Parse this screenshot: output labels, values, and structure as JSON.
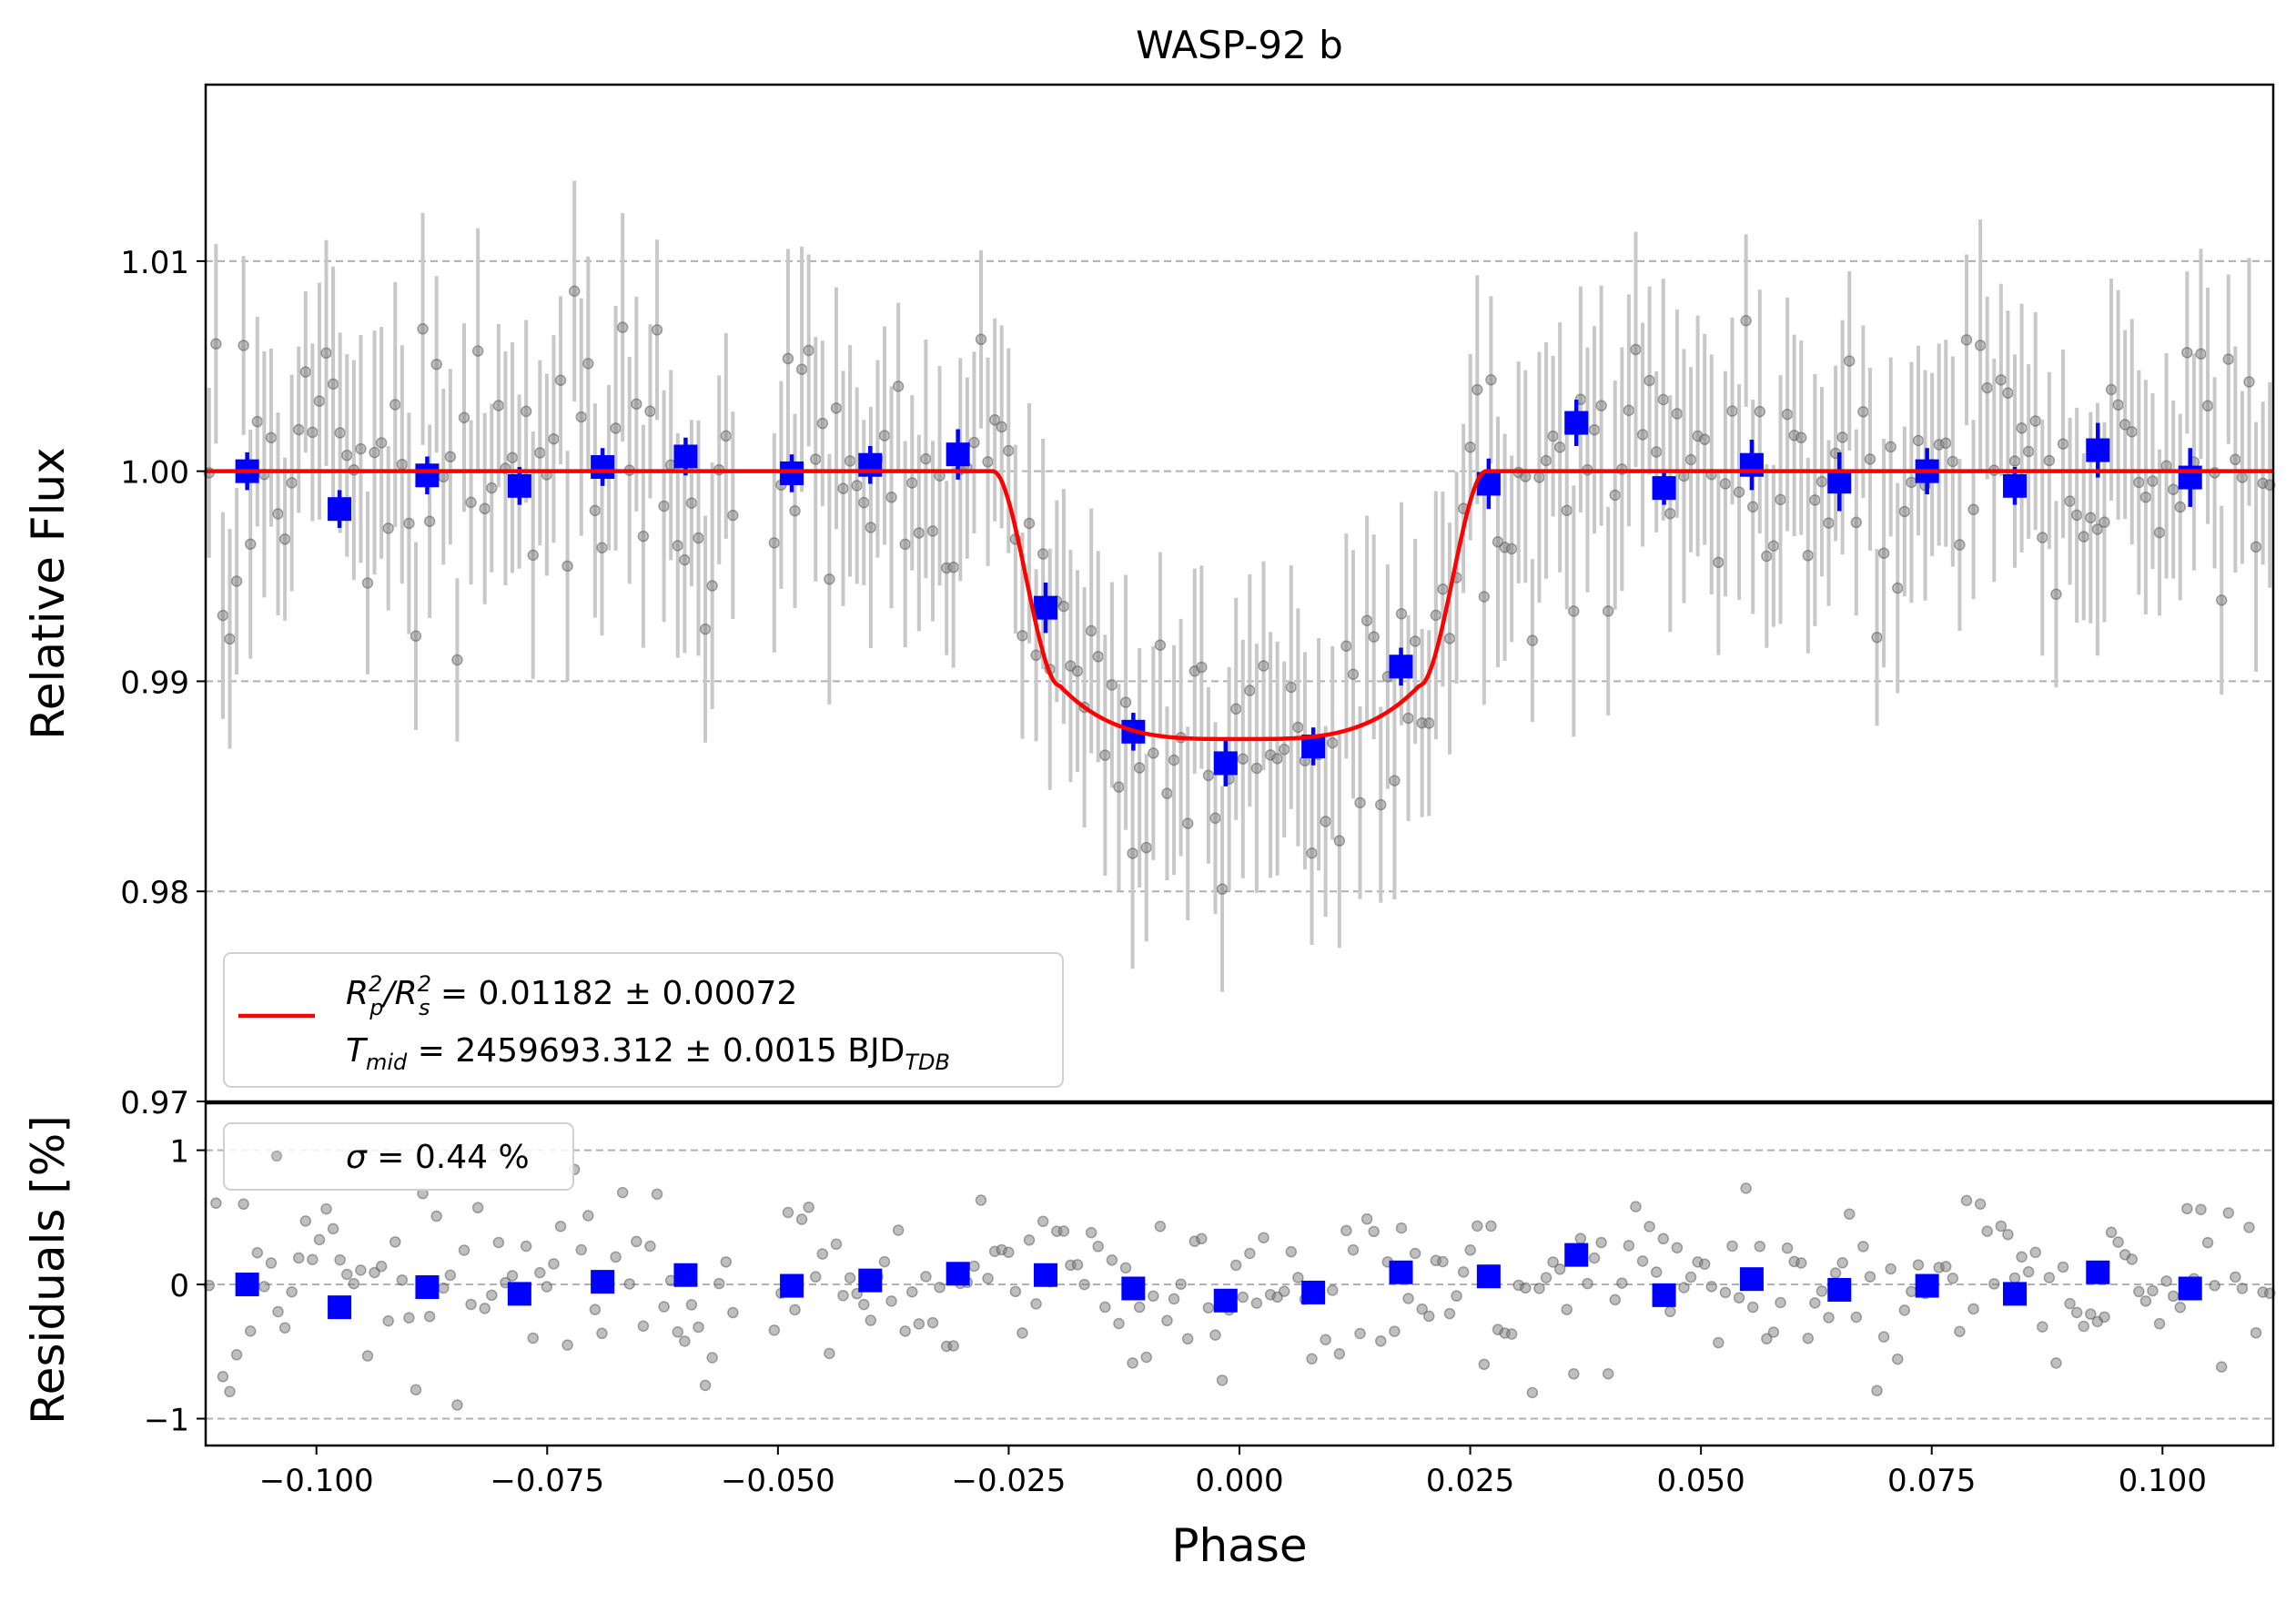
{
  "chart_data": [
    {
      "type": "scatter",
      "panel": "main",
      "title": "WASP-92 b",
      "xlabel": "Phase",
      "ylabel": "Relative Flux",
      "xlim": [
        -0.112,
        0.112
      ],
      "ylim": [
        0.97,
        1.0184
      ],
      "yticks": [
        0.97,
        0.98,
        0.99,
        1.0,
        1.01
      ],
      "ytick_labels": [
        "0.97",
        "0.98",
        "0.99",
        "1.00",
        "1.01"
      ],
      "grid": "horizontal-dashed",
      "legend_position": "bottom-left",
      "legend": {
        "line1_main": "R",
        "line1_sub1": "p",
        "line1_sup1": "2",
        "line1_slash": "/R",
        "line1_sub2": "s",
        "line1_sup2": "2",
        "line1_rest": " = 0.01182 ± 0.00072",
        "line2_main": "T",
        "line2_sub": "mid",
        "line2_rest": " = 2459693.312 ± 0.0015 BJD",
        "line2_unit_sub": "TDB"
      },
      "colors": {
        "model": "#ff0000",
        "binned": "#0000ff",
        "raw": "#808080",
        "errorbar": "#c8c8c8"
      },
      "series": [
        {
          "name": "model",
          "kind": "line",
          "transit_model": {
            "depth": 0.01182,
            "t_ingress_start": 0.0267,
            "t_ingress_end": 0.0195,
            "bottom": 0.98725,
            "edge": 0.9898
          }
        },
        {
          "name": "binned",
          "kind": "errorbar-square",
          "x": [
            -0.1075,
            -0.0975,
            -0.088,
            -0.078,
            -0.069,
            -0.06,
            -0.0485,
            -0.04,
            -0.0305,
            -0.021,
            -0.0115,
            -0.0015,
            0.008,
            0.0175,
            0.027,
            0.0365,
            0.046,
            0.0555,
            0.065,
            0.0745,
            0.084,
            0.093,
            0.103
          ],
          "y": [
            1.0,
            0.9982,
            0.9998,
            0.9993,
            1.0002,
            1.0007,
            0.9999,
            1.0003,
            1.0008,
            0.9935,
            0.9876,
            0.9861,
            0.9869,
            0.9907,
            0.9994,
            1.0023,
            0.9992,
            1.0003,
            0.9995,
            1.0,
            0.9993,
            1.001,
            0.9997
          ],
          "yerr": [
            0.0009,
            0.0009,
            0.0009,
            0.0009,
            0.0009,
            0.0009,
            0.0009,
            0.0009,
            0.0012,
            0.0012,
            0.0009,
            0.0011,
            0.0009,
            0.0009,
            0.0012,
            0.0011,
            0.0008,
            0.0012,
            0.0014,
            0.0011,
            0.0009,
            0.0013,
            0.0014
          ]
        },
        {
          "name": "raw",
          "kind": "scatter-errorbar",
          "n_points": 300,
          "x_range": [
            -0.112,
            0.112
          ],
          "scatter_sigma": 0.0044,
          "yerr_typical": 0.0045
        }
      ]
    },
    {
      "type": "scatter",
      "panel": "residuals",
      "xlabel": "Phase",
      "ylabel": "Residuals [%]",
      "xlim": [
        -0.112,
        0.112
      ],
      "ylim": [
        -1.2,
        1.35
      ],
      "xticks": [
        -0.1,
        -0.075,
        -0.05,
        -0.025,
        0.0,
        0.025,
        0.05,
        0.075,
        0.1
      ],
      "xtick_labels": [
        "−0.100",
        "−0.075",
        "−0.050",
        "−0.025",
        "0.000",
        "0.025",
        "0.050",
        "0.075",
        "0.100"
      ],
      "yticks": [
        -1,
        0,
        1
      ],
      "ytick_labels": [
        "−1",
        "0",
        "1"
      ],
      "grid": "horizontal-dashed",
      "legend": {
        "sigma_symbol": "σ",
        "sigma_text": " = 0.44 %"
      },
      "series": [
        {
          "name": "binned residuals",
          "kind": "square",
          "x": [
            -0.1075,
            -0.0975,
            -0.088,
            -0.078,
            -0.069,
            -0.06,
            -0.0485,
            -0.04,
            -0.0305,
            -0.021,
            -0.0115,
            -0.0015,
            0.008,
            0.0175,
            0.027,
            0.0365,
            0.046,
            0.0555,
            0.065,
            0.0745,
            0.084,
            0.093,
            0.103
          ],
          "y": [
            0.0,
            -0.17,
            -0.02,
            -0.07,
            0.02,
            0.07,
            -0.01,
            0.03,
            0.08,
            0.07,
            -0.03,
            -0.12,
            -0.06,
            0.09,
            0.06,
            0.22,
            -0.08,
            0.04,
            -0.04,
            -0.01,
            -0.07,
            0.09,
            -0.03
          ]
        },
        {
          "name": "raw residuals",
          "kind": "scatter",
          "sigma_percent": 0.44
        }
      ]
    }
  ]
}
